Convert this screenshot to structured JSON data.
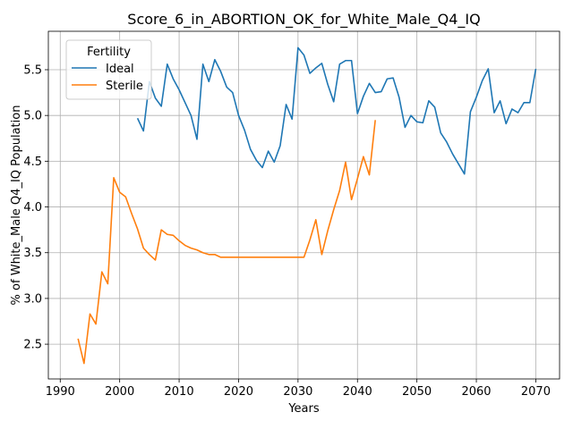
{
  "chart_data": {
    "type": "line",
    "title": "Score_6_in_ABORTION_OK_for_White_Male_Q4_IQ",
    "xlabel": "Years",
    "ylabel": "% of White_Male Q4_IQ Population",
    "xlim": [
      1988,
      2074
    ],
    "ylim": [
      2.12,
      5.92
    ],
    "xticks": [
      1990,
      2000,
      2010,
      2020,
      2030,
      2040,
      2050,
      2060,
      2070
    ],
    "yticks": [
      2.5,
      3.0,
      3.5,
      4.0,
      4.5,
      5.0,
      5.5
    ],
    "grid": true,
    "legend": {
      "title": "Fertility",
      "placement": "upper-left"
    },
    "series": [
      {
        "name": "Ideal",
        "color": "#1f77b4",
        "x": [
          2003,
          2004,
          2005,
          2006,
          2007,
          2008,
          2009,
          2010,
          2011,
          2012,
          2013,
          2014,
          2015,
          2016,
          2017,
          2018,
          2019,
          2020,
          2021,
          2022,
          2023,
          2024,
          2025,
          2026,
          2027,
          2028,
          2029,
          2030,
          2031,
          2032,
          2033,
          2034,
          2035,
          2036,
          2037,
          2038,
          2039,
          2040,
          2041,
          2042,
          2043,
          2044,
          2045,
          2046,
          2047,
          2048,
          2049,
          2050,
          2051,
          2052,
          2053,
          2054,
          2055,
          2056,
          2057,
          2058,
          2059,
          2060,
          2061,
          2062,
          2063,
          2064,
          2065,
          2066,
          2067,
          2068,
          2069,
          2070
        ],
        "y": [
          4.97,
          4.83,
          5.37,
          5.19,
          5.1,
          5.56,
          5.4,
          5.28,
          5.14,
          5.0,
          4.74,
          5.56,
          5.37,
          5.61,
          5.48,
          5.31,
          5.25,
          5.0,
          4.84,
          4.63,
          4.51,
          4.43,
          4.61,
          4.49,
          4.67,
          5.12,
          4.96,
          5.74,
          5.66,
          5.46,
          5.52,
          5.57,
          5.34,
          5.15,
          5.56,
          5.6,
          5.6,
          5.02,
          5.21,
          5.35,
          5.25,
          5.26,
          5.4,
          5.41,
          5.2,
          4.87,
          5.0,
          4.93,
          4.92,
          5.16,
          5.09,
          4.81,
          4.71,
          4.58,
          4.47,
          4.36,
          5.04,
          5.2,
          5.38,
          5.51,
          5.03,
          5.16,
          4.91,
          5.07,
          5.03,
          5.14,
          5.14,
          5.51
        ]
      },
      {
        "name": "Sterile",
        "color": "#ff7f0e",
        "x": [
          1993,
          1994,
          1995,
          1996,
          1997,
          1998,
          1999,
          2000,
          2001,
          2002,
          2003,
          2004,
          2005,
          2006,
          2007,
          2008,
          2009,
          2010,
          2011,
          2012,
          2013,
          2014,
          2015,
          2016,
          2017,
          2018,
          2019,
          2020,
          2021,
          2022,
          2023,
          2024,
          2025,
          2026,
          2027,
          2028,
          2029,
          2030,
          2031,
          2032,
          2033,
          2034,
          2035,
          2036,
          2037,
          2038,
          2039,
          2040,
          2041,
          2042,
          2043
        ],
        "y": [
          2.56,
          2.29,
          2.83,
          2.72,
          3.29,
          3.16,
          4.32,
          4.16,
          4.11,
          3.93,
          3.76,
          3.55,
          3.48,
          3.42,
          3.75,
          3.7,
          3.69,
          3.63,
          3.58,
          3.55,
          3.53,
          3.5,
          3.48,
          3.48,
          3.45,
          3.45,
          3.45,
          3.45,
          3.45,
          3.45,
          3.45,
          3.45,
          3.45,
          3.45,
          3.45,
          3.45,
          3.45,
          3.45,
          3.45,
          3.64,
          3.86,
          3.48,
          3.74,
          3.97,
          4.18,
          4.49,
          4.08,
          4.31,
          4.55,
          4.35,
          4.95
        ]
      }
    ]
  }
}
